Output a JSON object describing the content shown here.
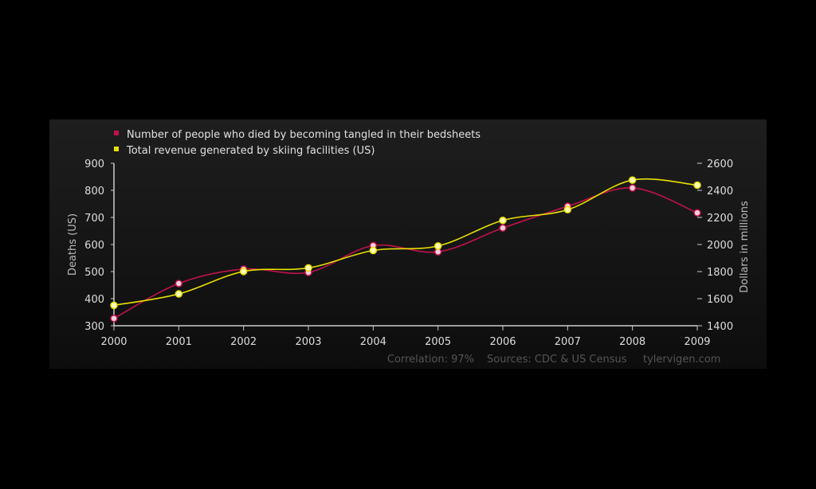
{
  "chart_data": {
    "type": "line",
    "x": [
      2000,
      2001,
      2002,
      2003,
      2004,
      2005,
      2006,
      2007,
      2008,
      2009
    ],
    "series": [
      {
        "name": "Number of people who died by becoming tangled in their bedsheets",
        "axis": "left",
        "color": "#c0134a",
        "values": [
          327,
          456,
          509,
          497,
          596,
          573,
          661,
          741,
          809,
          717
        ]
      },
      {
        "name": "Total revenue generated by skiing facilities (US)",
        "axis": "right",
        "color": "#e8e000",
        "values": [
          1551,
          1635,
          1801,
          1827,
          1956,
          1989,
          2178,
          2257,
          2476,
          2438
        ]
      }
    ],
    "ylabel": "Deaths (US)",
    "y2label": "Dollars in millions",
    "ylim": [
      300,
      900
    ],
    "y2lim": [
      1400,
      2600
    ],
    "yticks": [
      300,
      400,
      500,
      600,
      700,
      800,
      900
    ],
    "y2ticks": [
      1400,
      1600,
      1800,
      2000,
      2200,
      2400,
      2600
    ],
    "legend": "top-left",
    "grid": false
  },
  "footer": {
    "correlation": "Correlation: 97%",
    "sources": "Sources: CDC & US Census",
    "site": "tylervigen.com"
  }
}
